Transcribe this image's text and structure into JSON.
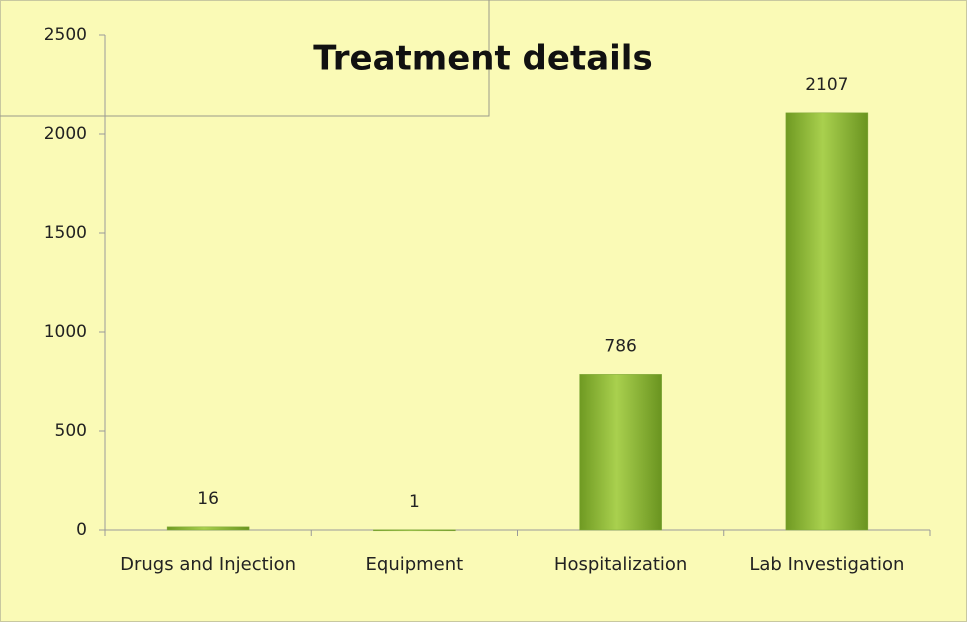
{
  "chart_data": {
    "type": "bar",
    "title": "Treatment details",
    "categories": [
      "Drugs and Injection",
      "Equipment",
      "Hospitalization",
      "Lab Investigation"
    ],
    "values": [
      16,
      1,
      786,
      2107
    ],
    "color": "#8db83a",
    "ylim": [
      0,
      2500
    ],
    "yticks": [
      0,
      500,
      1000,
      1500,
      2000,
      2500
    ]
  }
}
